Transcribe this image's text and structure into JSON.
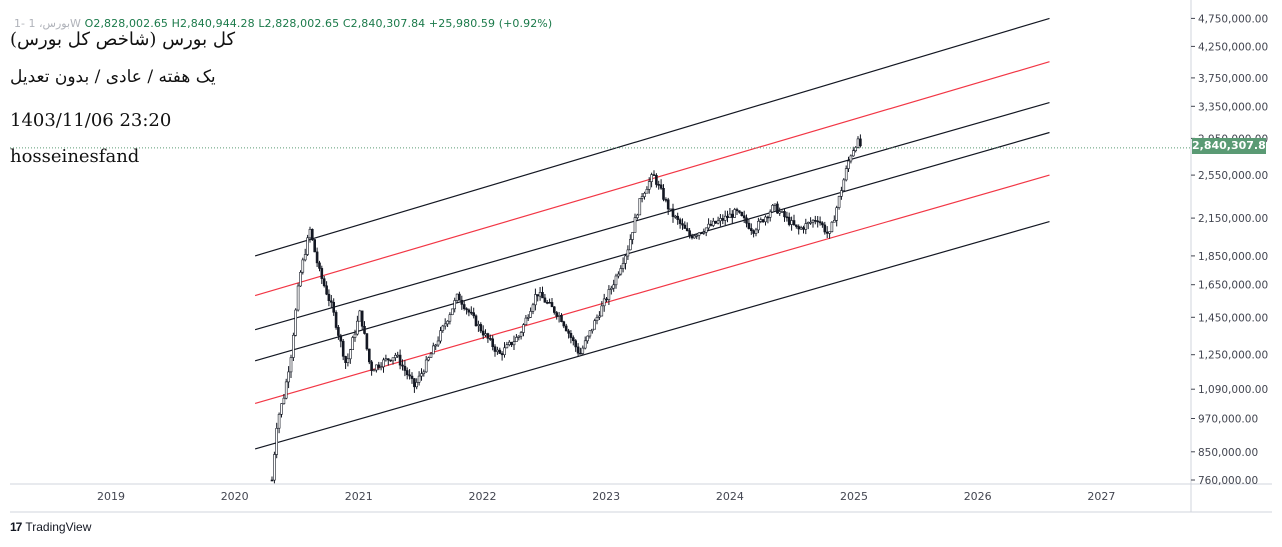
{
  "header": {
    "symbol_hidden": "1- بورس، 1W",
    "open_label": "O2,828,002.65",
    "high_label": "H2,840,944.28",
    "low_label": "L2,828,002.65",
    "close_label": "C2,840,307.84",
    "change_label": "+25,980.59 (+0.92%)"
  },
  "notes": {
    "title": "(کل بورس (شاخص کل بورس",
    "subtitle": "یک هفته / عادی / بدون تعدیل",
    "datetime": "1403/11/06 23:20",
    "author": "hosseinesfand"
  },
  "brand": {
    "logo": "17",
    "name": "TradingView"
  },
  "colors": {
    "candle": "#131722",
    "channel_black": "#131722",
    "channel_red": "#f23645",
    "axis_text": "#434651",
    "grid_border": "#d1d4dc",
    "last_price_bg": "#5a9a74",
    "last_price_line": "#5a9a74"
  },
  "chart_data": {
    "type": "candlestick",
    "y_scale": "log",
    "y_ticks": [
      4750000,
      4250000,
      3750000,
      3350000,
      2950000,
      2550000,
      2150000,
      1850000,
      1650000,
      1450000,
      1250000,
      1090000,
      970000,
      850000,
      760000
    ],
    "y_tick_labels": [
      "4,750,000.00",
      "4,250,000.00",
      "3,750,000.00",
      "3,350,000.00",
      "2,950,000.00",
      "2,550,000.00",
      "2,150,000.00",
      "1,850,000.00",
      "1,650,000.00",
      "1,450,000.00",
      "1,250,000.00",
      "1,090,000.00",
      "970,000.00",
      "850,000.00",
      "760,000.00"
    ],
    "x_ticks": [
      "2019",
      "2020",
      "2021",
      "2022",
      "2023",
      "2024",
      "2025",
      "2026",
      "2027"
    ],
    "last_price": 2840307.84,
    "last_price_label": "2,840,307.84",
    "series_path": [
      [
        "2020-04-20",
        760000
      ],
      [
        "2020-05-05",
        960000
      ],
      [
        "2020-05-25",
        1060000
      ],
      [
        "2020-06-15",
        1250000
      ],
      [
        "2020-07-10",
        1700000
      ],
      [
        "2020-08-10",
        2050000
      ],
      [
        "2020-09-05",
        1750000
      ],
      [
        "2020-10-15",
        1500000
      ],
      [
        "2020-11-25",
        1200000
      ],
      [
        "2021-01-05",
        1480000
      ],
      [
        "2021-02-05",
        1180000
      ],
      [
        "2021-04-20",
        1250000
      ],
      [
        "2021-06-15",
        1100000
      ],
      [
        "2021-08-10",
        1280000
      ],
      [
        "2021-10-20",
        1580000
      ],
      [
        "2021-12-20",
        1400000
      ],
      [
        "2022-02-20",
        1250000
      ],
      [
        "2022-04-20",
        1350000
      ],
      [
        "2022-06-10",
        1600000
      ],
      [
        "2022-08-20",
        1450000
      ],
      [
        "2022-10-15",
        1250000
      ],
      [
        "2022-12-05",
        1450000
      ],
      [
        "2023-01-20",
        1650000
      ],
      [
        "2023-03-05",
        1900000
      ],
      [
        "2023-04-15",
        2350000
      ],
      [
        "2023-05-20",
        2550000
      ],
      [
        "2023-07-10",
        2200000
      ],
      [
        "2023-09-05",
        2000000
      ],
      [
        "2023-11-15",
        2100000
      ],
      [
        "2024-01-20",
        2200000
      ],
      [
        "2024-03-10",
        2050000
      ],
      [
        "2024-05-10",
        2250000
      ],
      [
        "2024-07-20",
        2050000
      ],
      [
        "2024-09-15",
        2150000
      ],
      [
        "2024-10-20",
        2000000
      ],
      [
        "2024-11-20",
        2350000
      ],
      [
        "2024-12-20",
        2750000
      ],
      [
        "2025-01-10",
        2920000
      ],
      [
        "2025-01-25",
        2840307.84
      ]
    ],
    "channel_lines": [
      {
        "color": "black",
        "start": [
          "2020-03-01",
          1850000
        ],
        "end": [
          "2026-08-01",
          4750000
        ]
      },
      {
        "color": "red",
        "start": [
          "2020-03-01",
          1580000
        ],
        "end": [
          "2026-08-01",
          4000000
        ]
      },
      {
        "color": "black",
        "start": [
          "2020-03-01",
          1380000
        ],
        "end": [
          "2026-08-01",
          3400000
        ]
      },
      {
        "color": "black",
        "start": [
          "2020-03-01",
          1220000
        ],
        "end": [
          "2026-08-01",
          3020000
        ]
      },
      {
        "color": "red",
        "start": [
          "2020-03-01",
          1030000
        ],
        "end": [
          "2026-08-01",
          2550000
        ]
      },
      {
        "color": "black",
        "start": [
          "2020-03-01",
          860000
        ],
        "end": [
          "2026-08-01",
          2120000
        ]
      }
    ]
  }
}
